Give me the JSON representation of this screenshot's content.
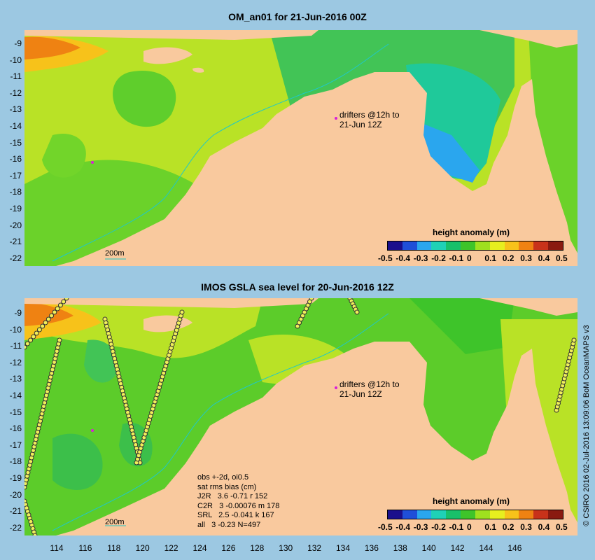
{
  "top_panel": {
    "title": "OM_an01 for 21-Jun-2016 00Z",
    "drifters_label_line1": "drifters @12h to",
    "drifters_label_line2": "21-Jun 12Z",
    "scale_label": "200m",
    "colorbar_title": "height anomaly (m)"
  },
  "bottom_panel": {
    "title": "IMOS GSLA sea level  for 20-Jun-2016 12Z",
    "drifters_label_line1": "drifters @12h to",
    "drifters_label_line2": "21-Jun 12Z",
    "scale_label": "200m",
    "colorbar_title": "height anomaly (m)",
    "stats_lines": [
      "obs +-2d, oi0.5",
      "sat rms bias (cm)",
      "J2R   3.6 -0.71 r 152",
      "C2R   3 -0.00076 m 178",
      "SRL   2.5 -0.041 k 167",
      "all   3 -0.23 N=497"
    ]
  },
  "lat_ticks": [
    "-9",
    "-10",
    "-11",
    "-12",
    "-13",
    "-14",
    "-15",
    "-16",
    "-17",
    "-18",
    "-19",
    "-20",
    "-21",
    "-22"
  ],
  "lon_ticks": [
    "114",
    "116",
    "118",
    "120",
    "122",
    "124",
    "126",
    "128",
    "130",
    "132",
    "134",
    "136",
    "138",
    "140",
    "142",
    "144",
    "146"
  ],
  "colorbar_ticks": [
    "-0.5",
    "-0.4",
    "-0.3",
    "-0.2",
    "-0.1",
    "0",
    "0.1",
    "0.2",
    "0.3",
    "0.4",
    "0.5"
  ],
  "colorbar_colors": [
    "#1a0f8c",
    "#1f4fd8",
    "#2aa6ee",
    "#1fd1b6",
    "#18c06a",
    "#3ec42a",
    "#9fe01f",
    "#e7ef1f",
    "#f7c21a",
    "#ef8212",
    "#c8321a",
    "#8a1a10"
  ],
  "land_color": "#f9c99e",
  "sea_color": "#9cc8e2",
  "credit": "© CSIRO 2016  02-Jul-2016 13:09:06 BoM OceanMAPS v3"
}
